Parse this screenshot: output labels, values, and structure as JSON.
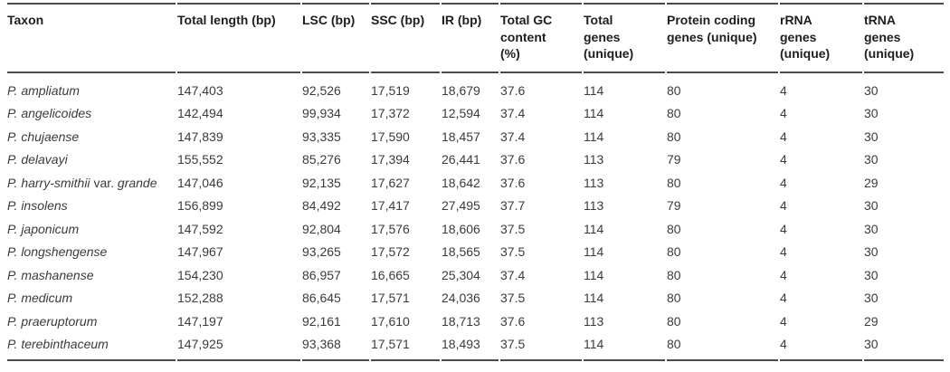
{
  "colors": {
    "background": "#ffffff",
    "rule": "#4a4a4a",
    "header_text": "#1e1e1e",
    "body_text": "#3b3b3b"
  },
  "table": {
    "roman_infix": " var. ",
    "columns": [
      {
        "key": "taxon",
        "label": "Taxon"
      },
      {
        "key": "total-length",
        "label": "Total length (bp)"
      },
      {
        "key": "lsc",
        "label": "LSC (bp)"
      },
      {
        "key": "ssc",
        "label": "SSC (bp)"
      },
      {
        "key": "ir",
        "label": "IR (bp)"
      },
      {
        "key": "gc-content",
        "label": "Total GC\ncontent\n(%)"
      },
      {
        "key": "total-genes",
        "label": "Total\ngenes\n(unique)"
      },
      {
        "key": "protein-coding-genes",
        "label": "Protein coding\ngenes (unique)"
      },
      {
        "key": "rrna-genes",
        "label": "rRNA\ngenes\n(unique)"
      },
      {
        "key": "trna-genes",
        "label": "tRNA\ngenes\n(unique)"
      }
    ],
    "rows": [
      [
        "P. ampliatum",
        "147,403",
        "92,526",
        "17,519",
        "18,679",
        "37.6",
        "114",
        "80",
        "4",
        "30"
      ],
      [
        "P. angelicoides",
        "142,494",
        "99,934",
        "17,372",
        "12,594",
        "37.4",
        "114",
        "80",
        "4",
        "30"
      ],
      [
        "P. chujaense",
        "147,839",
        "93,335",
        "17,590",
        "18,457",
        "37.4",
        "114",
        "80",
        "4",
        "30"
      ],
      [
        "P. delavayi",
        "155,552",
        "85,276",
        "17,394",
        "26,441",
        "37.6",
        "113",
        "79",
        "4",
        "30"
      ],
      [
        "P. harry-smithii var. grande",
        "147,046",
        "92,135",
        "17,627",
        "18,642",
        "37.6",
        "113",
        "80",
        "4",
        "29"
      ],
      [
        "P. insolens",
        "156,899",
        "84,492",
        "17,417",
        "27,495",
        "37.7",
        "113",
        "79",
        "4",
        "30"
      ],
      [
        "P. japonicum",
        "147,592",
        "92,804",
        "17,576",
        "18,606",
        "37.5",
        "114",
        "80",
        "4",
        "30"
      ],
      [
        "P. longshengense",
        "147,967",
        "93,265",
        "17,572",
        "18,565",
        "37.5",
        "114",
        "80",
        "4",
        "30"
      ],
      [
        "P. mashanense",
        "154,230",
        "86,957",
        "16,665",
        "25,304",
        "37.4",
        "114",
        "80",
        "4",
        "30"
      ],
      [
        "P. medicum",
        "152,288",
        "86,645",
        "17,571",
        "24,036",
        "37.5",
        "114",
        "80",
        "4",
        "30"
      ],
      [
        "P. praeruptorum",
        "147,197",
        "92,161",
        "17,610",
        "18,713",
        "37.6",
        "113",
        "80",
        "4",
        "29"
      ],
      [
        "P. terebinthaceum",
        "147,925",
        "93,368",
        "17,571",
        "18,493",
        "37.5",
        "114",
        "80",
        "4",
        "30"
      ]
    ]
  }
}
